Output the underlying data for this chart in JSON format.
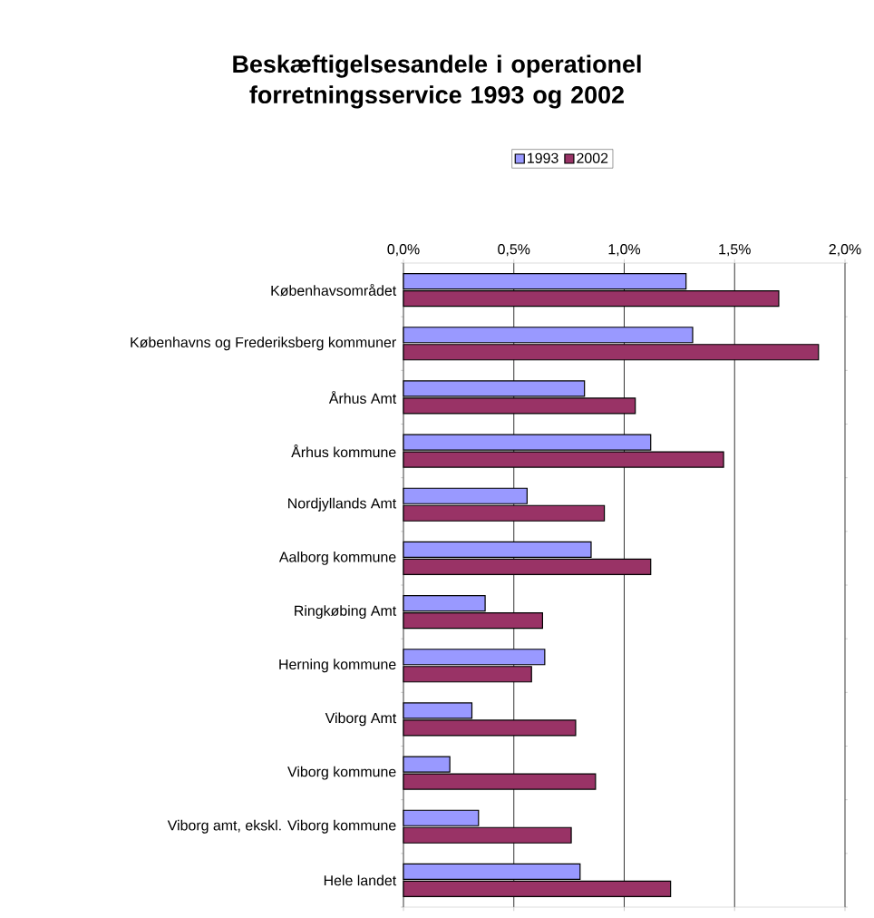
{
  "chart_data": {
    "type": "bar",
    "orientation": "horizontal",
    "title": "Beskæftigelsesandele i operationel forretningsservice 1993 og 2002",
    "categories": [
      "Københavsområdet",
      "Københavns og Frederiksberg kommuner",
      "Århus Amt",
      "Århus kommune",
      "Nordjyllands Amt",
      "Aalborg kommune",
      "Ringkøbing Amt",
      "Herning kommune",
      "Viborg Amt",
      "Viborg kommune",
      "Viborg amt, ekskl. Viborg kommune",
      "Hele landet"
    ],
    "series": [
      {
        "name": "1993",
        "color": "#9999ff",
        "values": [
          1.28,
          1.31,
          0.82,
          1.12,
          0.56,
          0.85,
          0.37,
          0.64,
          0.31,
          0.21,
          0.34,
          0.8
        ]
      },
      {
        "name": "2002",
        "color": "#993366",
        "values": [
          1.7,
          1.88,
          1.05,
          1.45,
          0.91,
          1.12,
          0.63,
          0.58,
          0.78,
          0.87,
          0.76,
          1.21
        ]
      }
    ],
    "xlim": [
      0,
      2
    ],
    "xticks": [
      {
        "value": 0,
        "label": "0,0%"
      },
      {
        "value": 0.5,
        "label": "0,5%"
      },
      {
        "value": 1,
        "label": "1,0%"
      },
      {
        "value": 1.5,
        "label": "1,5%"
      },
      {
        "value": 2,
        "label": "2,0%"
      }
    ],
    "grid": "x",
    "legend": "top"
  }
}
